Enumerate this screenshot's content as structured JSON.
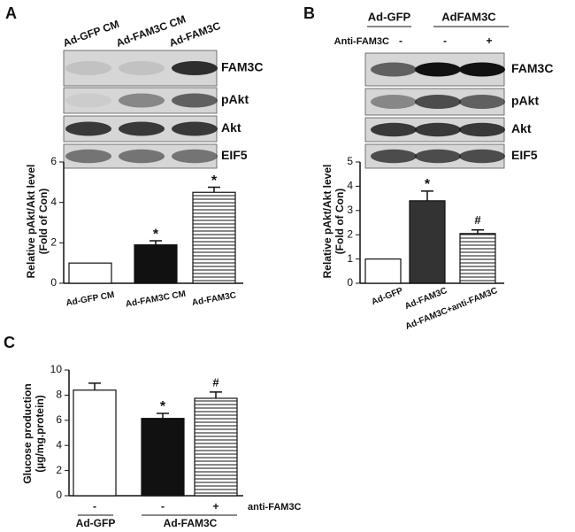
{
  "panels": [
    "A",
    "B",
    "C"
  ],
  "blots": [
    {
      "columns": [
        "Ad-GFP CM",
        "Ad-FAM3C CM",
        "Ad-FAM3C"
      ],
      "rows": [
        "FAM3C",
        "pAkt",
        "Akt",
        "EIF5"
      ]
    },
    {
      "groups": [
        "Ad-GFP",
        "AdFAM3C"
      ],
      "treatment": {
        "label": "Anti-FAM3C",
        "signs": [
          "-",
          "-",
          "+"
        ]
      },
      "rows": [
        "FAM3C",
        "pAkt",
        "Akt",
        "EIF5"
      ]
    }
  ],
  "chart_data": [
    {
      "type": "bar",
      "ylabel": [
        "Relative pAkt/Akt level",
        "(Fold of Con)"
      ],
      "categories": [
        "Ad-GFP CM",
        "Ad-FAM3C CM",
        "Ad-FAM3C"
      ],
      "values": [
        1.0,
        1.9,
        4.5
      ],
      "errors": [
        null,
        0.2,
        0.25
      ],
      "value_annotations": [
        null,
        "*",
        "*"
      ],
      "colors": [
        "#ffffff",
        "#111111",
        "#ffffff"
      ],
      "hatch": [
        false,
        false,
        true
      ],
      "ylim": [
        0,
        6
      ],
      "yticks": [
        0,
        2,
        4,
        6
      ]
    },
    {
      "type": "bar",
      "ylabel": [
        "Relative pAkt/Akt level",
        "(Fold of Con)"
      ],
      "categories": [
        "Ad-GFP",
        "Ad-FAM3C",
        "Ad-FAM3C+anti-FAM3C"
      ],
      "values": [
        1.0,
        3.4,
        2.05
      ],
      "errors": [
        null,
        0.4,
        0.15
      ],
      "value_annotations": [
        null,
        "*",
        "#"
      ],
      "colors": [
        "#ffffff",
        "#333333",
        "#ffffff"
      ],
      "hatch": [
        false,
        false,
        true
      ],
      "ylim": [
        0,
        5
      ],
      "yticks": [
        0,
        1,
        2,
        3,
        4,
        5
      ]
    },
    {
      "type": "bar",
      "ylabel": [
        "Glucose production",
        "(µg/mg.protein)"
      ],
      "categories": [
        null,
        null,
        null
      ],
      "values": [
        8.4,
        6.15,
        7.75
      ],
      "errors": [
        0.55,
        0.4,
        0.5
      ],
      "value_annotations": [
        null,
        "*",
        "#"
      ],
      "colors": [
        "#ffffff",
        "#111111",
        "#ffffff"
      ],
      "hatch": [
        false,
        false,
        true
      ],
      "ylim": [
        0,
        10
      ],
      "yticks": [
        0,
        2,
        4,
        6,
        8,
        10
      ],
      "treatment": {
        "label": "anti-FAM3C",
        "signs": [
          "-",
          "-",
          "+"
        ]
      },
      "groups": [
        "Ad-GFP",
        "Ad-FAM3C"
      ]
    }
  ]
}
